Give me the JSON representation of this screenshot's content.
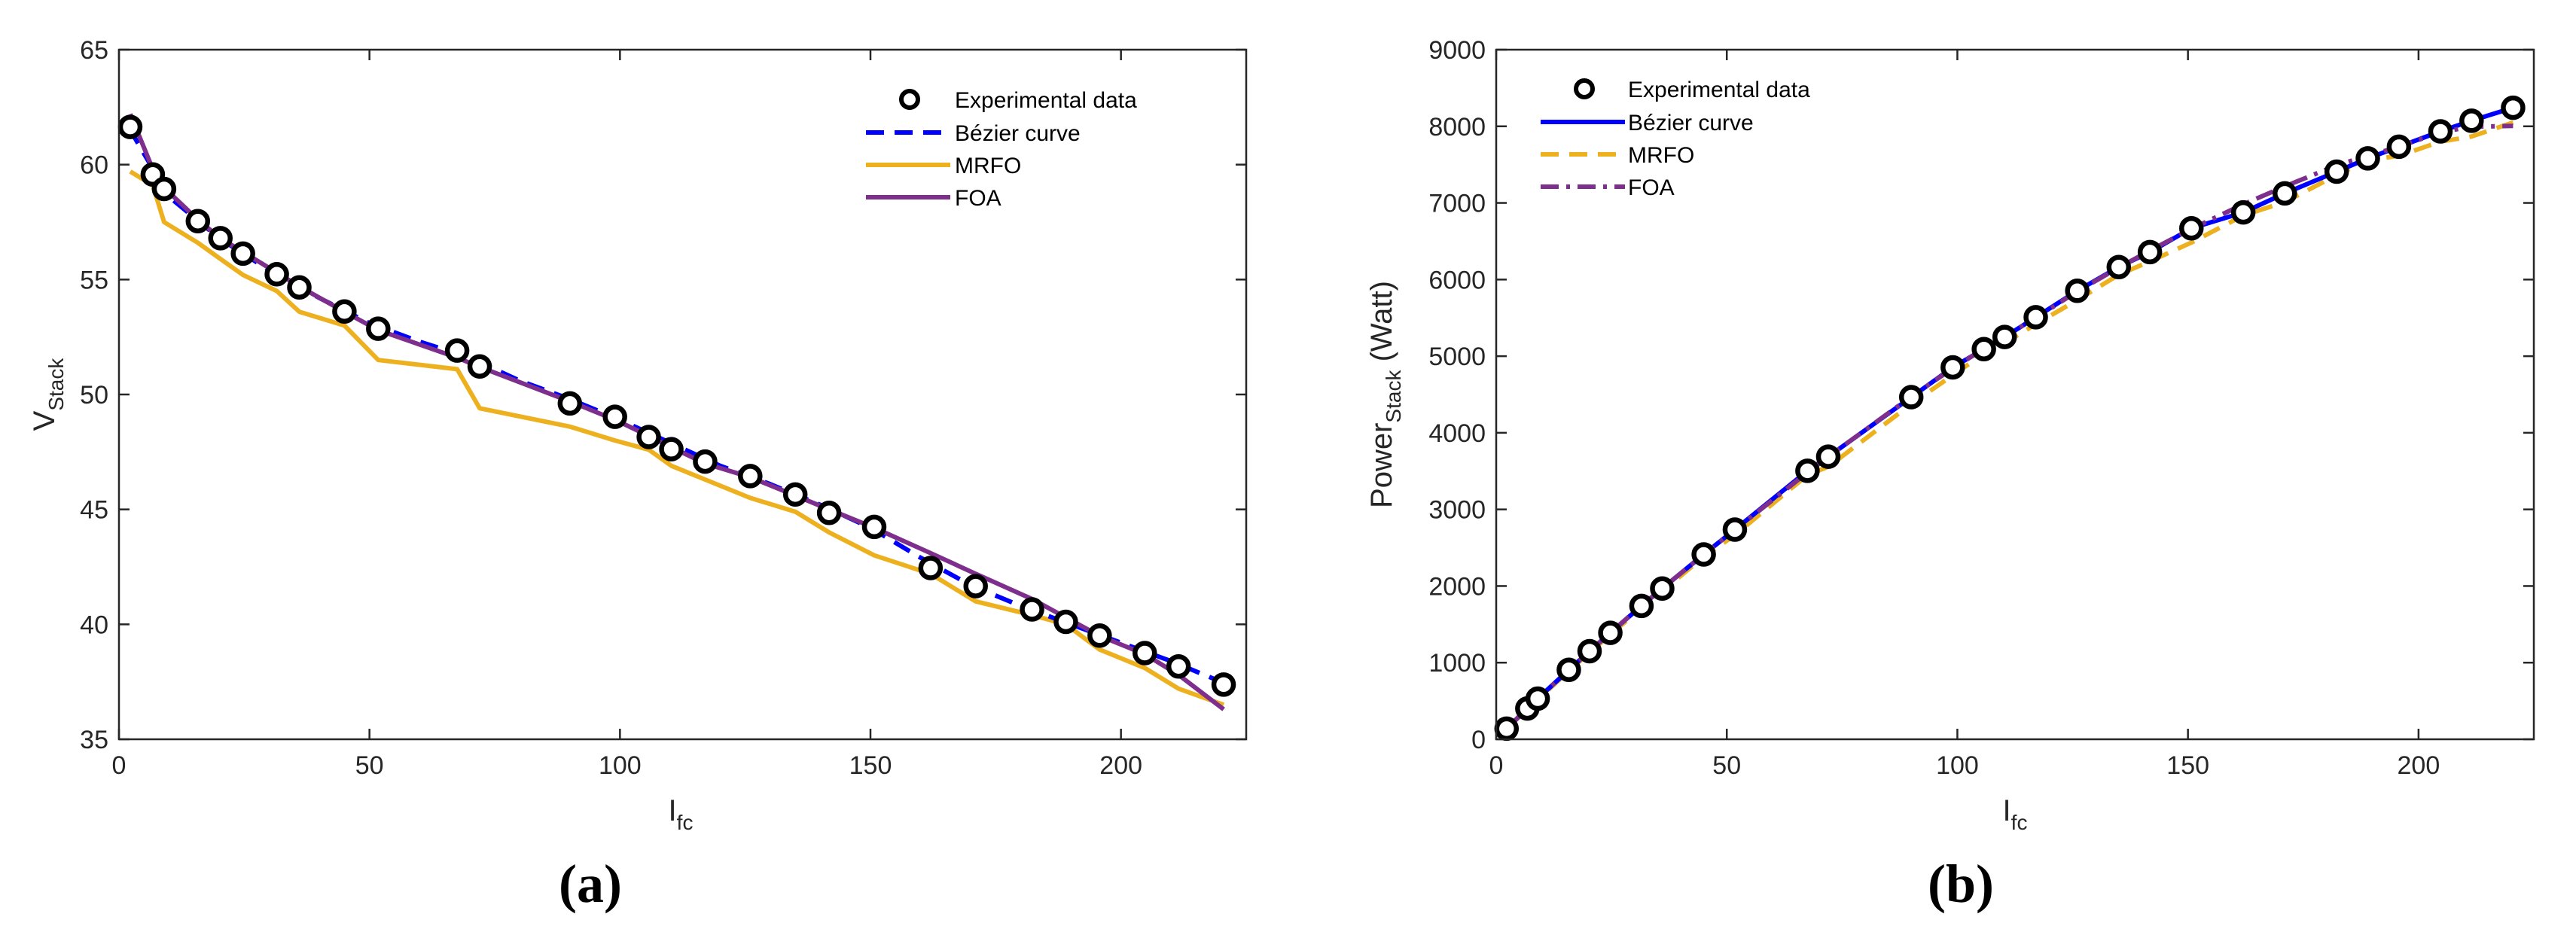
{
  "figure": {
    "panels": [
      {
        "label_open": "(",
        "label_letter": "a",
        "label_close": ")"
      },
      {
        "label_open": "(",
        "label_letter": "b",
        "label_close": ")"
      }
    ]
  },
  "colors": {
    "experimental": "#000000",
    "bezier": "#0000ff",
    "mrfo": "#edb120",
    "foa": "#7e2f8e"
  },
  "chart_data": [
    {
      "type": "line",
      "panel": "a",
      "title": "",
      "xlabel": "I",
      "xlabel_sub": "fc",
      "ylabel": "V",
      "ylabel_sub": "Stack",
      "xlim": [
        0,
        225
      ],
      "ylim": [
        35,
        65
      ],
      "xticks": [
        0,
        50,
        100,
        150,
        200
      ],
      "yticks": [
        35,
        40,
        45,
        50,
        55,
        60,
        65
      ],
      "legend_position": "top-right",
      "series": [
        {
          "name": "Experimental data",
          "style": "marker",
          "x": [
            2.25,
            6.75,
            9,
            15.75,
            20.25,
            24.75,
            31.5,
            36,
            45,
            51.75,
            67.5,
            72,
            90,
            99,
            105.75,
            110.25,
            117,
            126,
            135,
            141.75,
            150.75,
            162,
            171,
            182.25,
            189,
            195.75,
            204.75,
            211.5,
            220.5
          ],
          "y": [
            61.64,
            59.57,
            58.94,
            57.54,
            56.8,
            56.13,
            55.23,
            54.66,
            53.61,
            52.86,
            51.91,
            51.22,
            49.61,
            49.03,
            48.15,
            47.62,
            47.08,
            46.45,
            45.65,
            44.85,
            44.24,
            42.45,
            41.66,
            40.65,
            40.11,
            39.51,
            38.75,
            38.17,
            37.38
          ]
        },
        {
          "name": "Bézier curve",
          "style": "dashed",
          "x": [
            2,
            10,
            20,
            30,
            40,
            50,
            60,
            70,
            80,
            90,
            100,
            110,
            120,
            130,
            140,
            150,
            160,
            170,
            180,
            190,
            200,
            210,
            220
          ],
          "y": [
            61.6,
            58.6,
            56.8,
            55.4,
            54.2,
            53.1,
            52.3,
            51.6,
            50.6,
            49.8,
            48.9,
            47.9,
            46.9,
            46.1,
            45.2,
            44.2,
            42.9,
            41.7,
            40.8,
            40.0,
            39.2,
            38.4,
            37.5
          ]
        },
        {
          "name": "MRFO",
          "style": "solid",
          "x": [
            2.25,
            6.75,
            9,
            15.75,
            20.25,
            24.75,
            31.5,
            36,
            45,
            51.75,
            67.5,
            72,
            90,
            99,
            105.75,
            110.25,
            117,
            126,
            135,
            141.75,
            150.75,
            162,
            171,
            182.25,
            189,
            195.75,
            204.75,
            211.5,
            220.5
          ],
          "y": [
            59.7,
            59.1,
            57.5,
            56.6,
            55.9,
            55.2,
            54.5,
            53.6,
            53.0,
            51.5,
            51.1,
            49.4,
            48.6,
            48.0,
            47.6,
            46.9,
            46.3,
            45.5,
            44.9,
            44.0,
            43.0,
            42.2,
            41.0,
            40.4,
            40.0,
            38.9,
            38.1,
            37.2,
            36.5
          ]
        },
        {
          "name": "FOA",
          "style": "solid",
          "x": [
            2.25,
            6.75,
            9,
            15.75,
            20.25,
            24.75,
            31.5,
            36,
            45,
            51.75,
            67.5,
            72,
            90,
            99,
            105.75,
            110.25,
            117,
            126,
            135,
            141.75,
            150.75,
            162,
            171,
            182.25,
            189,
            195.75,
            204.75,
            211.5,
            220.5
          ],
          "y": [
            62.2,
            59.8,
            59.0,
            57.6,
            56.8,
            56.2,
            55.3,
            54.7,
            53.6,
            52.8,
            51.6,
            51.2,
            49.7,
            48.9,
            48.2,
            47.7,
            47.0,
            46.4,
            45.6,
            45.0,
            44.2,
            43.1,
            42.2,
            41.1,
            40.3,
            39.5,
            38.7,
            37.8,
            36.3
          ]
        }
      ]
    },
    {
      "type": "line",
      "panel": "b",
      "title": "",
      "xlabel": "I",
      "xlabel_sub": "fc",
      "ylabel": "Power",
      "ylabel_sub": "Stack",
      "ylabel_unit": " (Watt)",
      "xlim": [
        0,
        225
      ],
      "ylim": [
        0,
        9000
      ],
      "xticks": [
        0,
        50,
        100,
        150,
        200
      ],
      "yticks": [
        0,
        1000,
        2000,
        3000,
        4000,
        5000,
        6000,
        7000,
        8000,
        9000
      ],
      "legend_position": "top-left",
      "series": [
        {
          "name": "Experimental data",
          "style": "marker",
          "x": [
            2.25,
            6.75,
            9,
            15.75,
            20.25,
            24.75,
            31.5,
            36,
            45,
            51.75,
            67.5,
            72,
            90,
            99,
            105.75,
            110.25,
            117,
            126,
            135,
            141.75,
            150.75,
            162,
            171,
            182.25,
            189,
            195.75,
            204.75,
            211.5,
            220.5
          ],
          "y": [
            139,
            402,
            530,
            906,
            1150,
            1389,
            1740,
            1968,
            2412,
            2736,
            3504,
            3688,
            4465,
            4854,
            5092,
            5250,
            5508,
            5853,
            6163,
            6358,
            6669,
            6877,
            7124,
            7408,
            7581,
            7734,
            7934,
            8073,
            8242
          ]
        },
        {
          "name": "Bézier curve",
          "style": "solid",
          "x": [
            2.25,
            6.75,
            9,
            15.75,
            20.25,
            24.75,
            31.5,
            36,
            45,
            51.75,
            67.5,
            72,
            90,
            99,
            105.75,
            110.25,
            117,
            126,
            135,
            141.75,
            150.75,
            162,
            171,
            182.25,
            189,
            195.75,
            204.75,
            211.5,
            220.5
          ],
          "y": [
            139,
            400,
            530,
            906,
            1150,
            1389,
            1740,
            1968,
            2412,
            2736,
            3504,
            3688,
            4465,
            4854,
            5092,
            5250,
            5508,
            5853,
            6163,
            6358,
            6669,
            6877,
            7124,
            7408,
            7581,
            7734,
            7934,
            8073,
            8242
          ]
        },
        {
          "name": "MRFO",
          "style": "dashed",
          "x": [
            2.25,
            6.75,
            9,
            15.75,
            20.25,
            24.75,
            31.5,
            36,
            45,
            51.75,
            67.5,
            72,
            90,
            99,
            105.75,
            110.25,
            117,
            126,
            135,
            141.75,
            150.75,
            162,
            171,
            182.25,
            189,
            195.75,
            204.75,
            211.5,
            220.5
          ],
          "y": [
            134,
            399,
            518,
            891,
            1132,
            1366,
            1716,
            1930,
            2385,
            2665,
            3450,
            3557,
            4374,
            4752,
            5034,
            5171,
            5417,
            5733,
            6062,
            6237,
            6483,
            6836,
            7011,
            7363,
            7560,
            7615,
            7800,
            7867,
            8050
          ]
        },
        {
          "name": "FOA",
          "style": "dashdot",
          "x": [
            2.25,
            6.75,
            9,
            15.75,
            20.25,
            24.75,
            31.5,
            36,
            45,
            51.75,
            67.5,
            72,
            90,
            99,
            105.75,
            110.25,
            117,
            126,
            135,
            141.75,
            150.75,
            162,
            171,
            182.25,
            189,
            195.75,
            204.75,
            211.5,
            220.5
          ],
          "y": [
            140,
            404,
            531,
            907,
            1150,
            1391,
            1742,
            1969,
            2412,
            2732,
            3483,
            3686,
            4473,
            4841,
            5097,
            5259,
            5499,
            5846,
            6156,
            6379,
            6663,
            6982,
            7216,
            7491,
            7617,
            7732,
            7924,
            7995,
            8005
          ]
        }
      ]
    }
  ]
}
